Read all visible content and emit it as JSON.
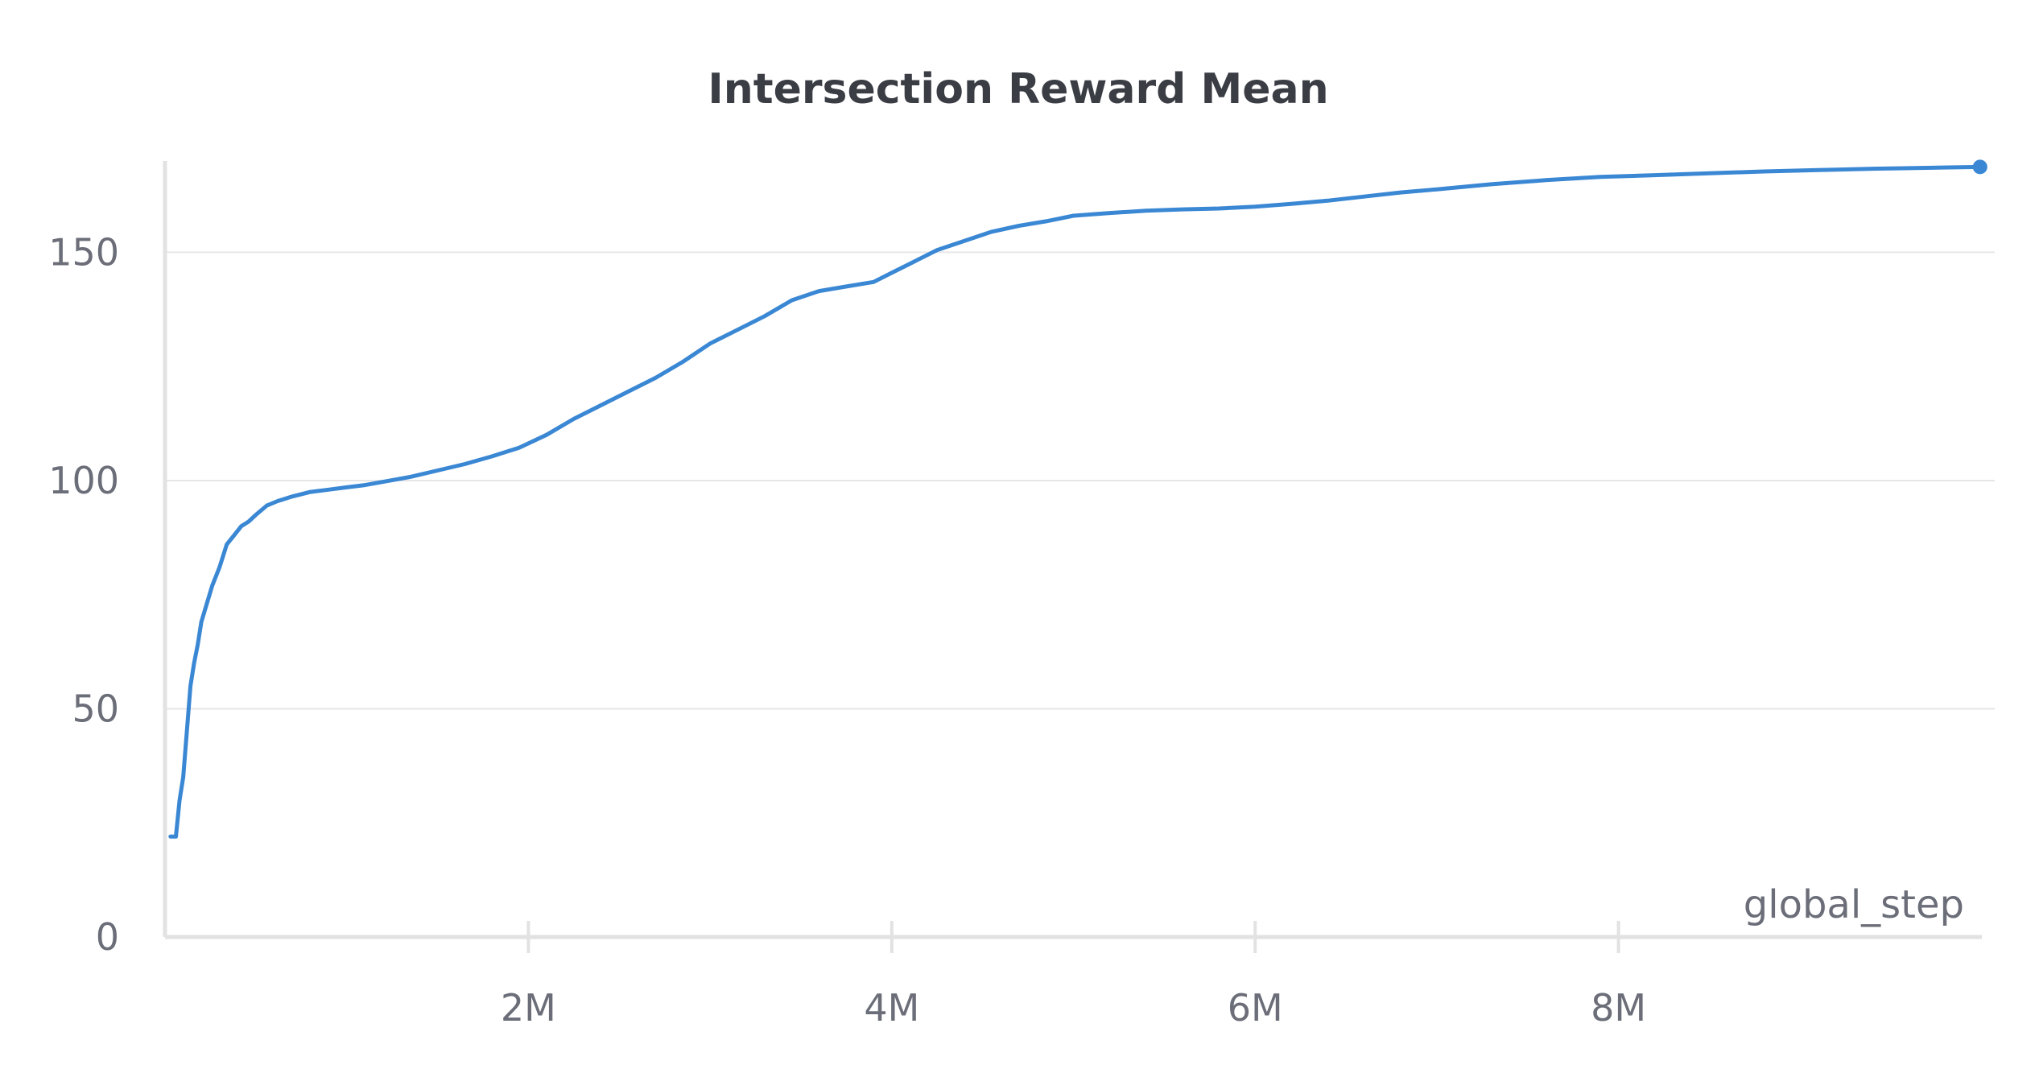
{
  "chart_data": {
    "type": "line",
    "title": "Intersection Reward Mean",
    "xlabel": "global_step",
    "ylabel": "",
    "xlim": [
      0,
      10000000
    ],
    "ylim": [
      0,
      170
    ],
    "x_ticks": [
      2000000,
      4000000,
      6000000,
      8000000
    ],
    "x_tick_labels": [
      "2M",
      "4M",
      "6M",
      "8M"
    ],
    "y_ticks": [
      0,
      50,
      100,
      150
    ],
    "y_tick_labels": [
      "0",
      "50",
      "100",
      "150"
    ],
    "grid": true,
    "colors": {
      "line": "#3a87d4",
      "grid": "#e6e6e6",
      "axis": "#e2e2e2"
    },
    "series": [
      {
        "x": [
          30000,
          60000,
          80000,
          100000,
          120000,
          140000,
          160000,
          180000,
          200000,
          230000,
          260000,
          300000,
          340000,
          380000,
          420000,
          460000,
          500000,
          560000,
          620000,
          700000,
          800000,
          900000,
          1000000,
          1100000,
          1200000,
          1350000,
          1500000,
          1650000,
          1800000,
          1950000,
          2100000,
          2250000,
          2400000,
          2550000,
          2700000,
          2850000,
          3000000,
          3150000,
          3300000,
          3450000,
          3600000,
          3750000,
          3900000,
          4000000,
          4100000,
          4250000,
          4400000,
          4550000,
          4700000,
          4850000,
          5000000,
          5200000,
          5400000,
          5600000,
          5800000,
          6000000,
          6200000,
          6400000,
          6600000,
          6800000,
          7000000,
          7300000,
          7600000,
          7900000,
          8200000,
          8500000,
          8800000,
          9100000,
          9400000,
          9700000,
          9990000
        ],
        "y": [
          22,
          22,
          30,
          35,
          45,
          55,
          60,
          64,
          69,
          73,
          77,
          81,
          86,
          88,
          90,
          91,
          92.5,
          94.5,
          95.5,
          96.5,
          97.5,
          98,
          98.5,
          99,
          99.7,
          100.8,
          102.2,
          103.6,
          105.3,
          107.2,
          110,
          113.5,
          116.5,
          119.5,
          122.5,
          126,
          130,
          133,
          136,
          139.5,
          141.5,
          142.5,
          143.5,
          145.5,
          147.5,
          150.5,
          152.5,
          154.5,
          155.8,
          156.8,
          158,
          158.6,
          159.1,
          159.4,
          159.6,
          160,
          160.6,
          161.3,
          162.2,
          163.1,
          163.8,
          164.9,
          165.8,
          166.5,
          166.9,
          167.3,
          167.7,
          168,
          168.3,
          168.5,
          168.7
        ]
      }
    ]
  }
}
